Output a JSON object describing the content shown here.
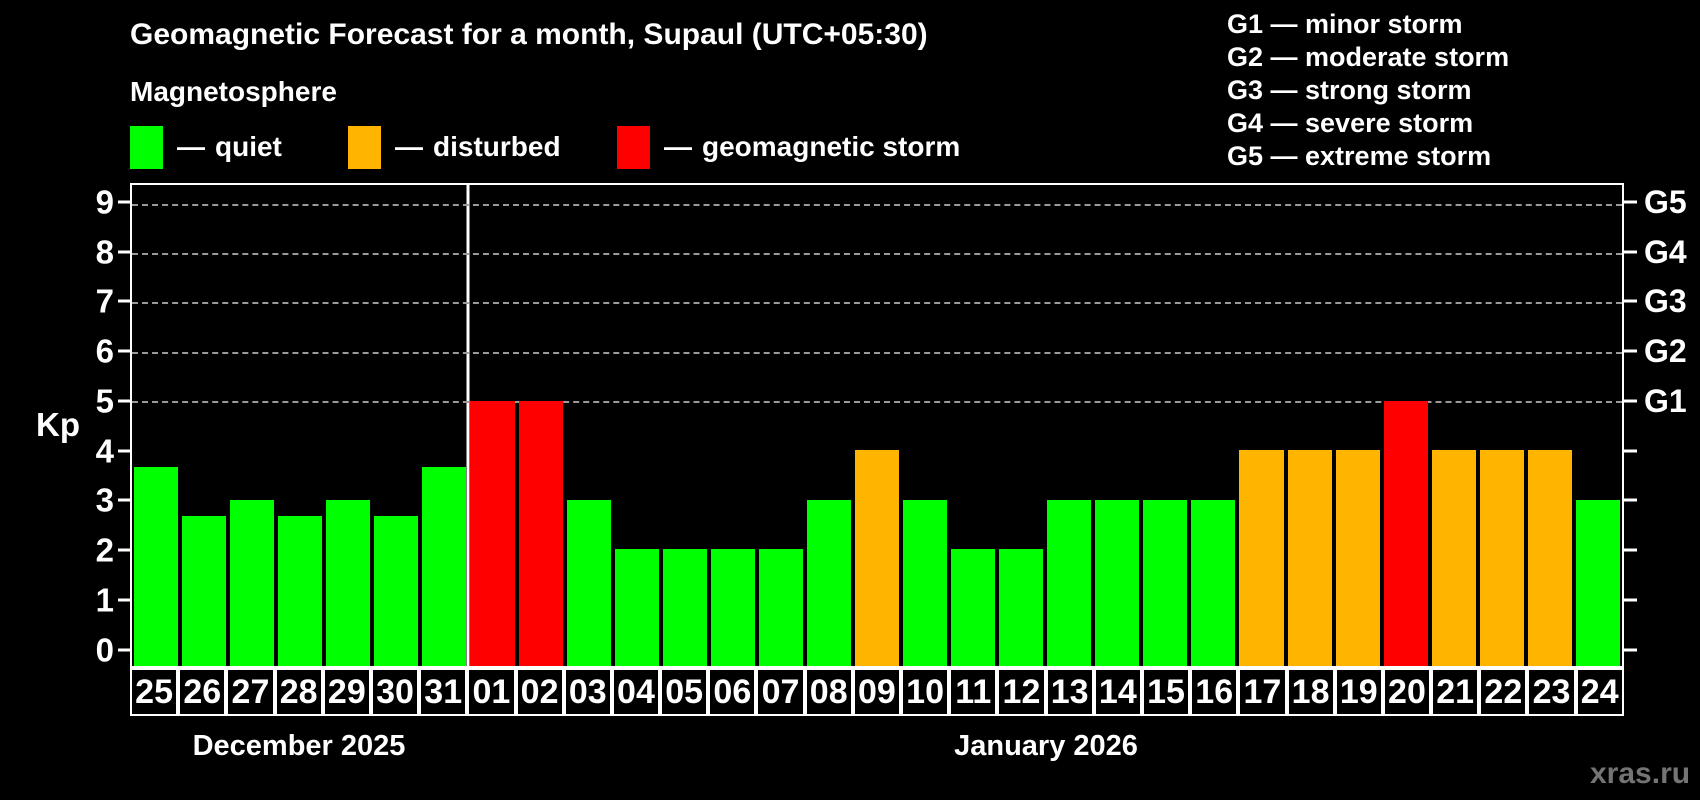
{
  "ui": {
    "dash": "—"
  },
  "chart_data": {
    "type": "bar",
    "title": "Geomagnetic Forecast for a month, Supaul (UTC+05:30)",
    "subtitle": "Magnetosphere",
    "ylabel": "Kp",
    "watermark": "xras.ru",
    "colors": {
      "background": "#000000",
      "text": "#ffffff",
      "grid": "#9a9a9a",
      "watermark": "#747474"
    },
    "axis": {
      "kp_top": 9.38,
      "kp_bottom": -0.37,
      "grid_kp": [
        5,
        6,
        7,
        8,
        9
      ]
    },
    "y_ticks": [
      "0",
      "1",
      "2",
      "3",
      "4",
      "5",
      "6",
      "7",
      "8",
      "9"
    ],
    "g_ticks": [
      {
        "label": "G1",
        "kp": 5
      },
      {
        "label": "G2",
        "kp": 6
      },
      {
        "label": "G3",
        "kp": 7
      },
      {
        "label": "G4",
        "kp": 8
      },
      {
        "label": "G5",
        "kp": 9
      }
    ],
    "g_legend": [
      "G1 — minor storm",
      "G2 — moderate storm",
      "G3 — strong storm",
      "G4 — severe storm",
      "G5 — extreme storm"
    ],
    "legend": [
      {
        "key": "quiet",
        "label": "quiet",
        "color": "#00ff00"
      },
      {
        "key": "disturbed",
        "label": "disturbed",
        "color": "#ffb400"
      },
      {
        "key": "storm",
        "label": "geomagnetic storm",
        "color": "#ff0000"
      }
    ],
    "months": [
      {
        "label": "December 2025",
        "days": 7
      },
      {
        "label": "January 2026",
        "days": 24
      }
    ],
    "days": [
      {
        "date": "25",
        "kp": 3.67,
        "status": "quiet"
      },
      {
        "date": "26",
        "kp": 2.67,
        "status": "quiet"
      },
      {
        "date": "27",
        "kp": 3,
        "status": "quiet"
      },
      {
        "date": "28",
        "kp": 2.67,
        "status": "quiet"
      },
      {
        "date": "29",
        "kp": 3,
        "status": "quiet"
      },
      {
        "date": "30",
        "kp": 2.67,
        "status": "quiet"
      },
      {
        "date": "31",
        "kp": 3.67,
        "status": "quiet"
      },
      {
        "date": "01",
        "kp": 5,
        "status": "storm"
      },
      {
        "date": "02",
        "kp": 5,
        "status": "storm"
      },
      {
        "date": "03",
        "kp": 3,
        "status": "quiet"
      },
      {
        "date": "04",
        "kp": 2,
        "status": "quiet"
      },
      {
        "date": "05",
        "kp": 2,
        "status": "quiet"
      },
      {
        "date": "06",
        "kp": 2,
        "status": "quiet"
      },
      {
        "date": "07",
        "kp": 2,
        "status": "quiet"
      },
      {
        "date": "08",
        "kp": 3,
        "status": "quiet"
      },
      {
        "date": "09",
        "kp": 4,
        "status": "disturbed"
      },
      {
        "date": "10",
        "kp": 3,
        "status": "quiet"
      },
      {
        "date": "11",
        "kp": 2,
        "status": "quiet"
      },
      {
        "date": "12",
        "kp": 2,
        "status": "quiet"
      },
      {
        "date": "13",
        "kp": 3,
        "status": "quiet"
      },
      {
        "date": "14",
        "kp": 3,
        "status": "quiet"
      },
      {
        "date": "15",
        "kp": 3,
        "status": "quiet"
      },
      {
        "date": "16",
        "kp": 3,
        "status": "quiet"
      },
      {
        "date": "17",
        "kp": 4,
        "status": "disturbed"
      },
      {
        "date": "18",
        "kp": 4,
        "status": "disturbed"
      },
      {
        "date": "19",
        "kp": 4,
        "status": "disturbed"
      },
      {
        "date": "20",
        "kp": 5,
        "status": "storm"
      },
      {
        "date": "21",
        "kp": 4,
        "status": "disturbed"
      },
      {
        "date": "22",
        "kp": 4,
        "status": "disturbed"
      },
      {
        "date": "23",
        "kp": 4,
        "status": "disturbed"
      },
      {
        "date": "24",
        "kp": 3,
        "status": "quiet"
      }
    ]
  }
}
